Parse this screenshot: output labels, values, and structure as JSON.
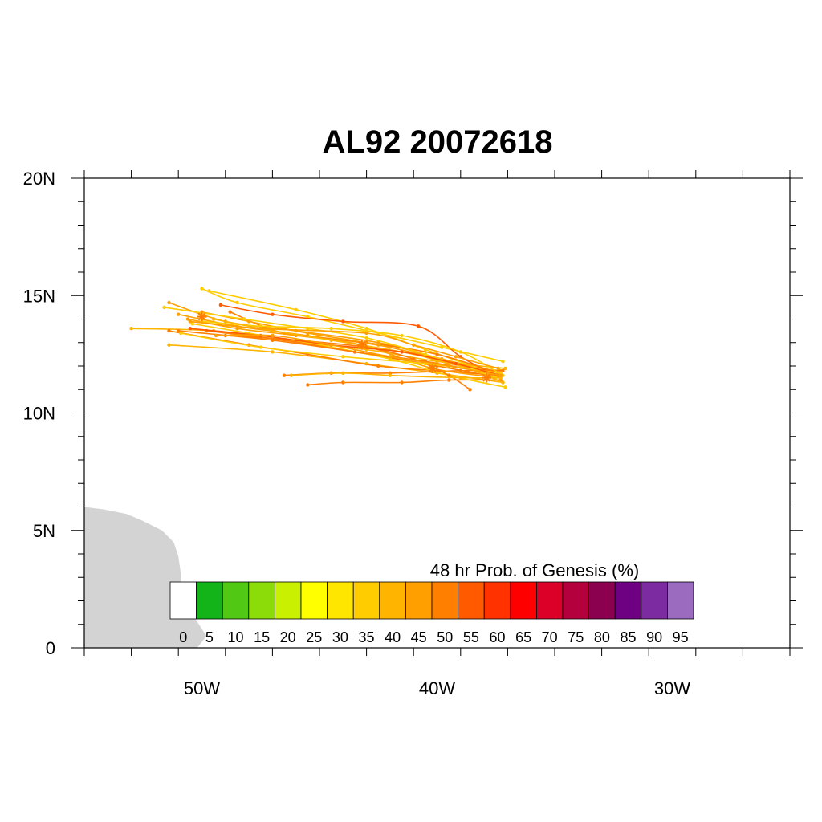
{
  "title": "AL92 20072618",
  "map": {
    "lon_range": [
      -55,
      -25
    ],
    "lat_range": [
      0,
      20
    ],
    "lat_ticks": [
      {
        "value": 0,
        "label": "0"
      },
      {
        "value": 5,
        "label": "5N"
      },
      {
        "value": 10,
        "label": "10N"
      },
      {
        "value": 15,
        "label": "15N"
      },
      {
        "value": 20,
        "label": "20N"
      }
    ],
    "lon_ticks": [
      {
        "value": -50,
        "label": "50W"
      },
      {
        "value": -40,
        "label": "40W"
      },
      {
        "value": -30,
        "label": "30W"
      }
    ],
    "land_color": "#d3d3d3",
    "land_outline": [
      [
        -55,
        6.0
      ],
      [
        -54.2,
        5.9
      ],
      [
        -53.2,
        5.7
      ],
      [
        -52.5,
        5.4
      ],
      [
        -51.7,
        5.0
      ],
      [
        -51.2,
        4.5
      ],
      [
        -51.0,
        3.9
      ],
      [
        -50.9,
        3.2
      ],
      [
        -50.9,
        2.6
      ],
      [
        -50.5,
        1.6
      ],
      [
        -50.0,
        0.8
      ],
      [
        -49.8,
        0.5
      ],
      [
        -50.2,
        0
      ],
      [
        -55,
        0
      ]
    ]
  },
  "colorbar": {
    "title": "48 hr Prob. of Genesis (%)",
    "labels": [
      "0",
      "5",
      "10",
      "15",
      "20",
      "25",
      "30",
      "35",
      "40",
      "45",
      "50",
      "55",
      "60",
      "65",
      "70",
      "75",
      "80",
      "85",
      "90",
      "95"
    ],
    "colors": [
      "#ffffff",
      "#12b41a",
      "#50c814",
      "#8cdc0a",
      "#c8f000",
      "#ffff00",
      "#ffe600",
      "#ffcc00",
      "#ffb400",
      "#ffa000",
      "#ff7f00",
      "#ff5a00",
      "#ff3200",
      "#ff0000",
      "#dc0028",
      "#b4003c",
      "#8c0050",
      "#6e0082",
      "#7d2ba0",
      "#9a6bbf"
    ]
  },
  "tracks": {
    "start": [
      -37.3,
      11.6
    ],
    "mean_marks": [
      [
        -50.0,
        14.1
      ],
      [
        -43.2,
        12.9
      ],
      [
        -40.2,
        11.9
      ],
      [
        -37.9,
        11.5
      ]
    ],
    "members": [
      {
        "color": "#ffa000",
        "points": [
          [
            -37.3,
            11.8
          ],
          [
            -39.5,
            12.1
          ],
          [
            -42.0,
            12.8
          ],
          [
            -45.5,
            13.3
          ],
          [
            -48.5,
            13.7
          ],
          [
            -51.0,
            14.2
          ]
        ]
      },
      {
        "color": "#ffa000",
        "points": [
          [
            -37.3,
            11.7
          ],
          [
            -39.8,
            12.3
          ],
          [
            -42.5,
            13.0
          ],
          [
            -46.0,
            13.5
          ],
          [
            -49.0,
            13.9
          ],
          [
            -51.4,
            14.7
          ]
        ]
      },
      {
        "color": "#ffcc00",
        "points": [
          [
            -37.2,
            12.2
          ],
          [
            -39.8,
            12.8
          ],
          [
            -42.5,
            13.4
          ],
          [
            -45.5,
            14.1
          ],
          [
            -48.5,
            14.7
          ],
          [
            -50.0,
            15.3
          ]
        ]
      },
      {
        "color": "#ffcc00",
        "points": [
          [
            -37.4,
            11.6
          ],
          [
            -40.5,
            12.7
          ],
          [
            -43.0,
            13.6
          ],
          [
            -46.0,
            14.4
          ],
          [
            -49.7,
            15.2
          ]
        ]
      },
      {
        "color": "#ff5a00",
        "points": [
          [
            -37.3,
            11.5
          ],
          [
            -39.0,
            12.4
          ],
          [
            -40.8,
            13.7
          ],
          [
            -44.0,
            13.9
          ],
          [
            -47.0,
            14.2
          ],
          [
            -49.2,
            14.6
          ]
        ]
      },
      {
        "color": "#ffb400",
        "points": [
          [
            -37.1,
            11.9
          ],
          [
            -40.0,
            12.2
          ],
          [
            -43.0,
            12.7
          ],
          [
            -46.5,
            13.1
          ],
          [
            -49.5,
            13.5
          ],
          [
            -53.0,
            13.6
          ]
        ]
      },
      {
        "color": "#ffb400",
        "points": [
          [
            -37.2,
            11.3
          ],
          [
            -40.0,
            11.7
          ],
          [
            -43.0,
            12.1
          ],
          [
            -47.0,
            12.6
          ],
          [
            -51.4,
            12.9
          ]
        ]
      },
      {
        "color": "#ff7f00",
        "points": [
          [
            -37.3,
            11.4
          ],
          [
            -39.5,
            11.4
          ],
          [
            -41.5,
            11.3
          ],
          [
            -44.0,
            11.3
          ],
          [
            -45.5,
            11.2
          ]
        ]
      },
      {
        "color": "#ff7f00",
        "points": [
          [
            -37.2,
            11.8
          ],
          [
            -39.0,
            11.8
          ],
          [
            -42.0,
            11.7
          ],
          [
            -44.5,
            11.7
          ],
          [
            -46.5,
            11.6
          ]
        ]
      },
      {
        "color": "#ff7f00",
        "points": [
          [
            -37.3,
            11.6
          ],
          [
            -40.0,
            11.8
          ],
          [
            -42.5,
            12.0
          ],
          [
            -45.5,
            12.5
          ],
          [
            -48.0,
            12.9
          ],
          [
            -51.4,
            13.5
          ]
        ]
      },
      {
        "color": "#ff7f00",
        "points": [
          [
            -37.3,
            11.5
          ],
          [
            -40.0,
            12.0
          ],
          [
            -43.5,
            12.6
          ],
          [
            -47.0,
            13.1
          ],
          [
            -51.0,
            13.5
          ]
        ]
      },
      {
        "color": "#ff7f00",
        "points": [
          [
            -37.4,
            11.7
          ],
          [
            -40.0,
            12.5
          ],
          [
            -43.0,
            13.0
          ],
          [
            -46.5,
            13.4
          ],
          [
            -48.8,
            14.3
          ]
        ]
      },
      {
        "color": "#ffa000",
        "points": [
          [
            -37.3,
            11.6
          ],
          [
            -39.5,
            12.2
          ],
          [
            -42.5,
            12.9
          ],
          [
            -45.5,
            13.4
          ],
          [
            -48.0,
            13.9
          ],
          [
            -50.0,
            14.3
          ]
        ]
      },
      {
        "color": "#ffa000",
        "points": [
          [
            -37.3,
            11.5
          ],
          [
            -40.2,
            11.9
          ],
          [
            -43.2,
            12.9
          ],
          [
            -46.0,
            13.3
          ],
          [
            -48.5,
            13.6
          ],
          [
            -50.6,
            14.0
          ]
        ]
      },
      {
        "color": "#ffcc00",
        "points": [
          [
            -37.1,
            11.1
          ],
          [
            -39.5,
            11.6
          ],
          [
            -42.0,
            12.3
          ],
          [
            -45.0,
            12.9
          ],
          [
            -48.0,
            13.4
          ],
          [
            -50.4,
            13.8
          ]
        ]
      },
      {
        "color": "#ffcc00",
        "points": [
          [
            -37.2,
            11.6
          ],
          [
            -39.0,
            12.6
          ],
          [
            -41.5,
            13.3
          ],
          [
            -44.5,
            13.6
          ],
          [
            -47.5,
            13.7
          ],
          [
            -50.0,
            13.9
          ]
        ]
      },
      {
        "color": "#ffcc00",
        "points": [
          [
            -37.5,
            11.5
          ],
          [
            -40.5,
            12.5
          ],
          [
            -43.0,
            13.2
          ],
          [
            -45.5,
            13.6
          ],
          [
            -48.2,
            14.0
          ],
          [
            -51.6,
            14.5
          ]
        ]
      },
      {
        "color": "#ff7f00",
        "points": [
          [
            -37.3,
            11.6
          ],
          [
            -40.5,
            12.2
          ],
          [
            -43.5,
            12.6
          ],
          [
            -46.5,
            13.1
          ],
          [
            -49.8,
            13.5
          ]
        ]
      },
      {
        "color": "#ffb400",
        "points": [
          [
            -37.2,
            11.3
          ],
          [
            -39.0,
            12.0
          ],
          [
            -41.5,
            12.6
          ],
          [
            -44.5,
            13.1
          ],
          [
            -47.5,
            13.6
          ],
          [
            -49.5,
            14.0
          ]
        ]
      },
      {
        "color": "#ff7f00",
        "points": [
          [
            -38.6,
            11.0
          ],
          [
            -39.5,
            11.6
          ],
          [
            -41.0,
            12.3
          ],
          [
            -43.0,
            12.8
          ],
          [
            -46.0,
            13.1
          ],
          [
            -49.0,
            13.3
          ]
        ]
      },
      {
        "color": "#ffb400",
        "points": [
          [
            -37.3,
            11.5
          ],
          [
            -39.0,
            11.5
          ],
          [
            -42.0,
            11.6
          ],
          [
            -44.0,
            11.7
          ],
          [
            -46.2,
            11.6
          ]
        ]
      },
      {
        "color": "#ffa000",
        "points": [
          [
            -37.4,
            11.9
          ],
          [
            -39.2,
            12.4
          ],
          [
            -41.0,
            12.9
          ],
          [
            -43.0,
            13.4
          ],
          [
            -47.5,
            13.6
          ],
          [
            -50.5,
            13.9
          ]
        ]
      },
      {
        "color": "#ffcc00",
        "points": [
          [
            -37.3,
            11.7
          ],
          [
            -40.5,
            12.1
          ],
          [
            -44.0,
            12.4
          ],
          [
            -47.5,
            12.8
          ],
          [
            -50.9,
            13.4
          ]
        ]
      },
      {
        "color": "#ff5a00",
        "points": [
          [
            -37.3,
            11.6
          ],
          [
            -39.2,
            12.1
          ],
          [
            -41.5,
            12.6
          ],
          [
            -44.5,
            12.9
          ],
          [
            -47.5,
            13.3
          ],
          [
            -50.5,
            13.6
          ]
        ]
      },
      {
        "color": "#ffa000",
        "points": [
          [
            -37.3,
            11.6
          ],
          [
            -39.5,
            12.0
          ],
          [
            -42.0,
            12.4
          ],
          [
            -44.5,
            12.9
          ],
          [
            -47.0,
            13.3
          ],
          [
            -49.4,
            13.3
          ]
        ]
      }
    ]
  }
}
